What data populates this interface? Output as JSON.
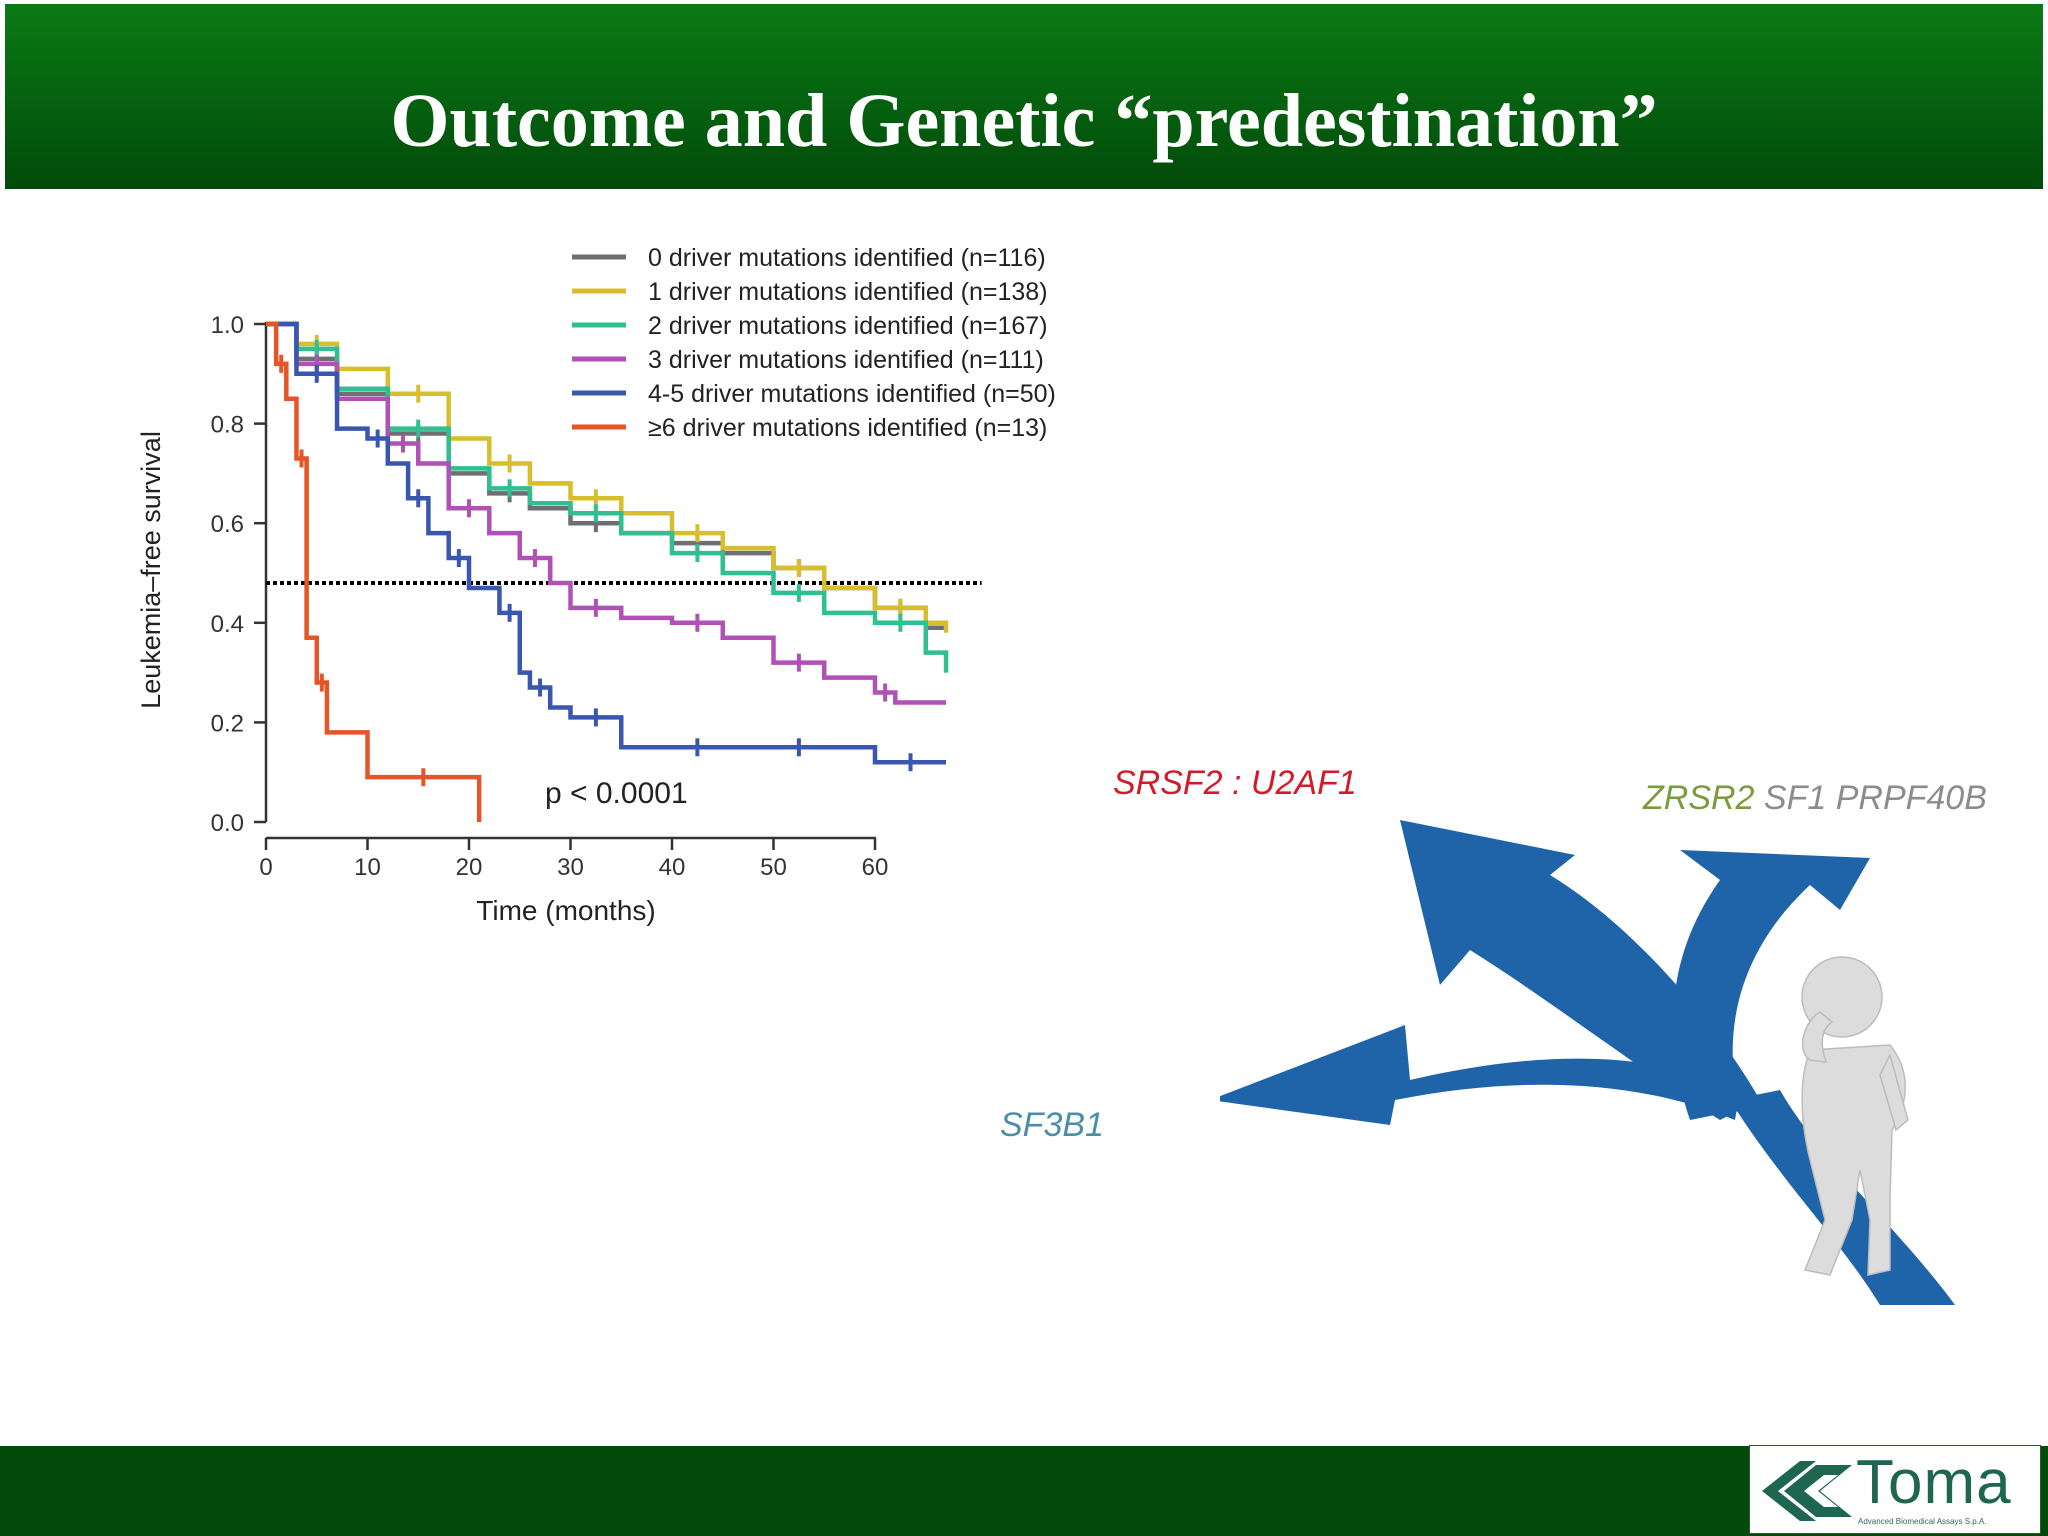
{
  "slide": {
    "title": "Outcome and Genetic “predestination”"
  },
  "colors": {
    "header": "#066510",
    "footer": "#034a0a",
    "srsf2": "#d21b2a",
    "u2af1": "#d21b2a",
    "zrsr2": "#7a9b3e",
    "sf1": "#8c8c8c",
    "prpf40b": "#8c8c8c",
    "sf3b1": "#4a8fa6",
    "arrow": "#1f63a8"
  },
  "genes": {
    "srsf2_u2af1": "SRSF2 : U2AF1",
    "zrsr2": "ZRSR2",
    "sf1_prpf40b": "SF1 PRPF40B",
    "sf3b1": "SF3B1"
  },
  "illustration": {
    "subject": "figure-at-crossroads-arrows"
  },
  "logo": {
    "word": "Toma",
    "subtitle": "Advanced Biomedical Assays S.p.A."
  },
  "chart_data": {
    "type": "line",
    "subtype": "kaplan-meier-step",
    "title": "",
    "xlabel": "Time (months)",
    "ylabel": "Leukemia–free survival",
    "xlim": [
      0,
      67
    ],
    "ylim": [
      0,
      1.0
    ],
    "xticks": [
      0,
      10,
      20,
      30,
      40,
      50,
      60
    ],
    "yticks": [
      0.0,
      0.2,
      0.4,
      0.6,
      0.8,
      1.0
    ],
    "ytick_labels": [
      "0.0",
      "0.2",
      "0.4",
      "0.6",
      "0.8",
      "1.0"
    ],
    "reference_line": {
      "y": 0.48,
      "style": "dotted"
    },
    "annotation": "p < 0.0001",
    "legend_position": "top-right",
    "grid": false,
    "series": [
      {
        "name": "0 driver mutations identified (n=116)",
        "color": "#6e6e73",
        "x": [
          0,
          3,
          7,
          12,
          18,
          22,
          26,
          30,
          35,
          40,
          45,
          50,
          55,
          60,
          65,
          67
        ],
        "y": [
          1.0,
          0.93,
          0.86,
          0.78,
          0.7,
          0.66,
          0.63,
          0.6,
          0.58,
          0.56,
          0.54,
          0.51,
          0.47,
          0.43,
          0.39,
          0.39
        ]
      },
      {
        "name": "1 driver mutations identified (n=138)",
        "color": "#d8be2c",
        "x": [
          0,
          3,
          7,
          12,
          18,
          22,
          26,
          30,
          35,
          40,
          45,
          50,
          55,
          60,
          65,
          67
        ],
        "y": [
          1.0,
          0.96,
          0.91,
          0.86,
          0.77,
          0.72,
          0.68,
          0.65,
          0.62,
          0.58,
          0.55,
          0.51,
          0.47,
          0.43,
          0.4,
          0.38
        ]
      },
      {
        "name": "2 driver mutations identified (n=167)",
        "color": "#2fbf90",
        "x": [
          0,
          3,
          7,
          12,
          18,
          22,
          26,
          30,
          35,
          40,
          45,
          50,
          55,
          60,
          65,
          67
        ],
        "y": [
          1.0,
          0.95,
          0.87,
          0.79,
          0.71,
          0.67,
          0.64,
          0.62,
          0.58,
          0.54,
          0.5,
          0.46,
          0.42,
          0.4,
          0.34,
          0.3
        ]
      },
      {
        "name": "3 driver mutations identified (n=111)",
        "color": "#b051b5",
        "x": [
          0,
          3,
          7,
          12,
          15,
          18,
          22,
          25,
          28,
          30,
          35,
          40,
          45,
          50,
          55,
          60,
          62,
          67
        ],
        "y": [
          1.0,
          0.92,
          0.85,
          0.76,
          0.72,
          0.63,
          0.58,
          0.53,
          0.48,
          0.43,
          0.41,
          0.4,
          0.37,
          0.32,
          0.29,
          0.26,
          0.24,
          0.24
        ]
      },
      {
        "name": "4-5 driver mutations identified (n=50)",
        "color": "#3a57b0",
        "x": [
          0,
          3,
          7,
          10,
          12,
          14,
          16,
          18,
          20,
          23,
          25,
          26,
          28,
          30,
          35,
          40,
          45,
          50,
          55,
          60,
          67
        ],
        "y": [
          1.0,
          0.9,
          0.79,
          0.77,
          0.72,
          0.65,
          0.58,
          0.53,
          0.47,
          0.42,
          0.3,
          0.27,
          0.23,
          0.21,
          0.15,
          0.15,
          0.15,
          0.15,
          0.15,
          0.12,
          0.12
        ]
      },
      {
        "name": "≥6 driver mutations identified (n=13)",
        "color": "#e65526",
        "x": [
          0,
          1,
          2,
          3,
          4,
          5,
          6,
          10,
          21,
          21
        ],
        "y": [
          1.0,
          0.92,
          0.85,
          0.73,
          0.37,
          0.28,
          0.18,
          0.09,
          0.09,
          0.0
        ]
      }
    ]
  }
}
